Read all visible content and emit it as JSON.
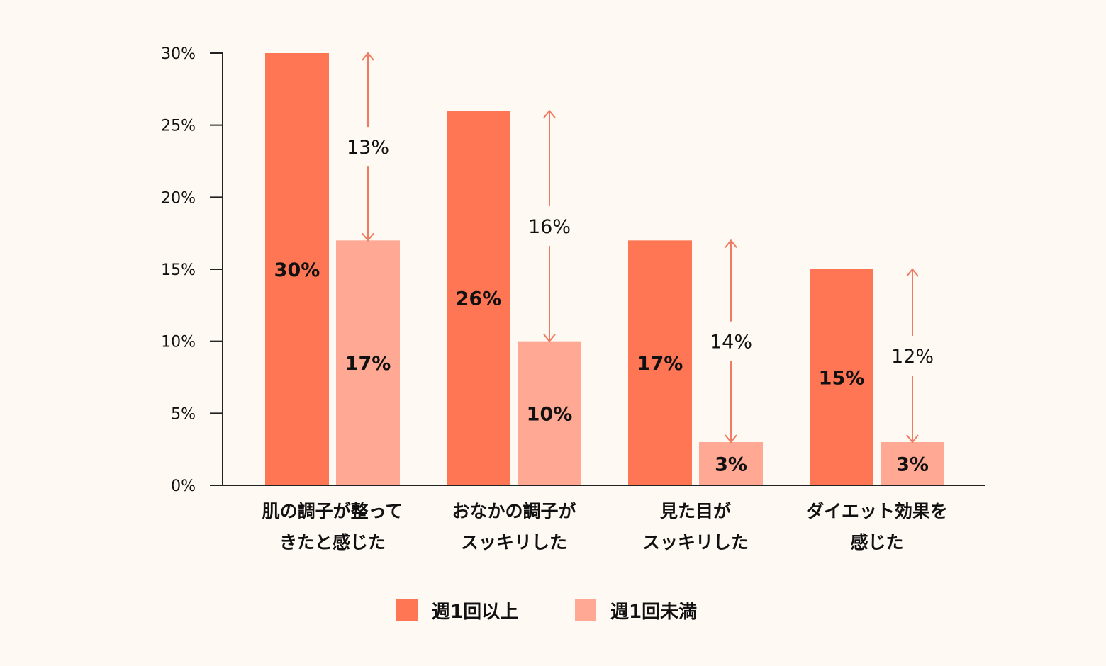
{
  "chart_data": {
    "type": "bar",
    "categories": [
      [
        "肌の調子が整って",
        "きたと感じた"
      ],
      [
        "おなかの調子が",
        "スッキリした"
      ],
      [
        "見た目が",
        "スッキリした"
      ],
      [
        "ダイエット効果を",
        "感じた"
      ]
    ],
    "series": [
      {
        "name": "週1回以上",
        "values": [
          30,
          26,
          17,
          15
        ],
        "color": "#FF7654",
        "value_labels": [
          "30%",
          "26%",
          "17%",
          "15%"
        ]
      },
      {
        "name": "週1回未満",
        "values": [
          17,
          10,
          3,
          3
        ],
        "color": "#FFA893",
        "value_labels": [
          "17%",
          "10%",
          "3%",
          "3%"
        ]
      }
    ],
    "differences": [
      {
        "value": 13,
        "label": "13%"
      },
      {
        "value": 16,
        "label": "16%"
      },
      {
        "value": 14,
        "label": "14%"
      },
      {
        "value": 12,
        "label": "12%"
      }
    ],
    "y_ticks": [
      0,
      5,
      10,
      15,
      20,
      25,
      30
    ],
    "y_tick_labels": [
      "0%",
      "5%",
      "10%",
      "15%",
      "20%",
      "25%",
      "30%"
    ],
    "ylim": [
      0,
      30
    ],
    "grid": false,
    "legend_position": "bottom-center",
    "arrow_color": "#F07B63",
    "axis_color": "#222222"
  }
}
